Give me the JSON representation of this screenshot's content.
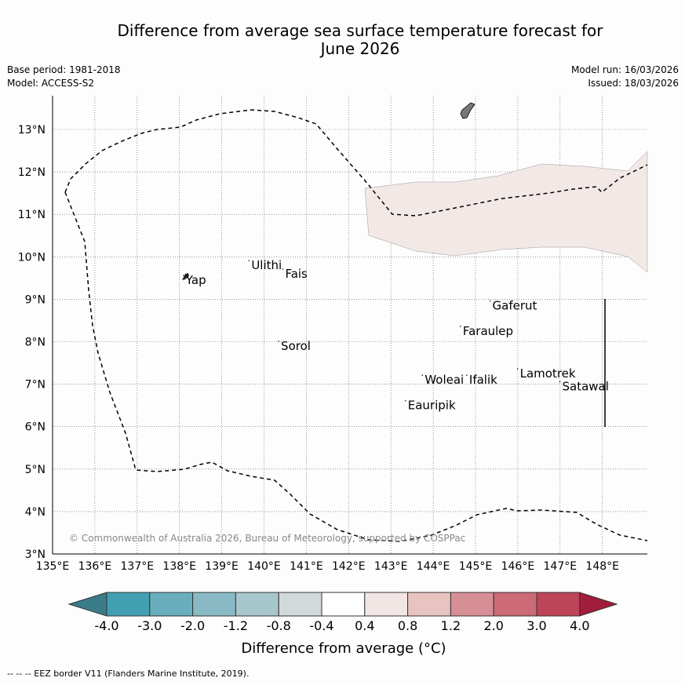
{
  "title_line1": "Difference from average sea surface temperature forecast for",
  "title_line2": "June 2026",
  "base_period": "Base period: 1981-2018",
  "model": "Model: ACCESS-S2",
  "model_run": "Model run: 16/03/2026",
  "issued": "Issued: 18/03/2026",
  "x_ticks": [
    "135°E",
    "136°E",
    "137°E",
    "138°E",
    "139°E",
    "140°E",
    "141°E",
    "142°E",
    "143°E",
    "144°E",
    "145°E",
    "146°E",
    "147°E",
    "148°E"
  ],
  "y_ticks": [
    "3°N",
    "4°N",
    "5°N",
    "6°N",
    "7°N",
    "8°N",
    "9°N",
    "10°N",
    "11°N",
    "12°N",
    "13°N"
  ],
  "places": [
    {
      "name": "Yap",
      "lon": 138.15,
      "lat": 9.45
    },
    {
      "name": "Ulithi",
      "lon": 139.7,
      "lat": 9.8
    },
    {
      "name": "Fais",
      "lon": 140.5,
      "lat": 9.6
    },
    {
      "name": "Gaferut",
      "lon": 145.4,
      "lat": 8.85
    },
    {
      "name": "Faraulep",
      "lon": 144.7,
      "lat": 8.25
    },
    {
      "name": "Sorol",
      "lon": 140.4,
      "lat": 7.9
    },
    {
      "name": "Lamotrek",
      "lon": 146.05,
      "lat": 7.25
    },
    {
      "name": "Satawal",
      "lon": 147.05,
      "lat": 6.95
    },
    {
      "name": "Woleai",
      "lon": 143.8,
      "lat": 7.1
    },
    {
      "name": "Ifalik",
      "lon": 144.85,
      "lat": 7.1
    },
    {
      "name": "Eauripik",
      "lon": 143.4,
      "lat": 6.5
    }
  ],
  "copyright": "© Commonwealth of Australia 2026, Bureau of Meteorology, supported by COSPPac",
  "colorbar": {
    "label": "Difference from average (°C)",
    "ticks": [
      "-4.0",
      "-3.0",
      "-2.0",
      "-1.2",
      "-0.8",
      "-0.4",
      "0.4",
      "0.8",
      "1.2",
      "2.0",
      "3.0",
      "4.0"
    ],
    "colors": [
      "#43a0b2",
      "#6aadbc",
      "#88b9c4",
      "#a8c7cd",
      "#d1d9db",
      "#ffffff",
      "#f2e6e4",
      "#e7c4c0",
      "#d68f95",
      "#cc6a76",
      "#be4458"
    ],
    "under_color": "#3b7c8a",
    "over_color": "#a21d3c"
  },
  "anomaly_color": "#f2e8e6",
  "footer": "--  --  -- EEZ border V11 (Flanders Marine Institute, 2019)."
}
